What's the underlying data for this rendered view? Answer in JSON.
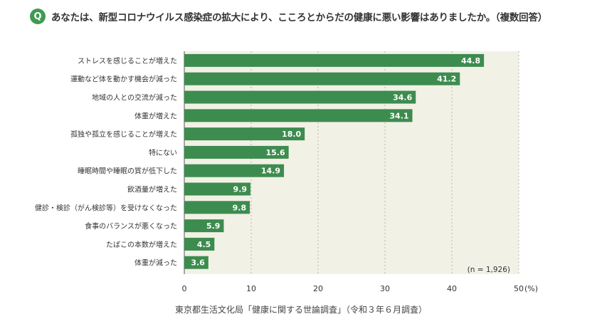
{
  "header": {
    "badge": "Q",
    "question": "あなたは、新型コロナウイルス感染症の拡大により、こころとからだの健康に悪い影響はありましたか。（複数回答）"
  },
  "colors": {
    "accent": "#3f9a52",
    "bar": "#3d8c4f",
    "plot_background": "#f2f1e6",
    "grid": "#b8b8a8"
  },
  "chart_data": {
    "type": "bar",
    "orientation": "horizontal",
    "categories": [
      "ストレスを感じることが増えた",
      "運動など体を動かす機会が減った",
      "地域の人との交流が減った",
      "体重が増えた",
      "孤独や孤立を感じることが増えた",
      "特にない",
      "睡眠時間や睡眠の質が低下した",
      "飲酒量が増えた",
      "健診・検診（がん検診等）を受けなくなった",
      "食事のバランスが悪くなった",
      "たばこの本数が増えた",
      "体重が減った"
    ],
    "values": [
      44.8,
      41.2,
      34.6,
      34.1,
      18.0,
      15.6,
      14.9,
      9.9,
      9.8,
      5.9,
      4.5,
      3.6
    ],
    "value_labels": [
      "44.8",
      "41.2",
      "34.6",
      "34.1",
      "18.0",
      "15.6",
      "14.9",
      "9.9",
      "9.8",
      "5.9",
      "4.5",
      "3.6"
    ],
    "xlim": [
      0,
      50
    ],
    "xticks": [
      0,
      10,
      20,
      30,
      40,
      50
    ],
    "xtick_labels": [
      "0",
      "10",
      "20",
      "30",
      "40",
      "50"
    ],
    "unit_label": "(%)",
    "annotation": "(n = 1,926)",
    "grid": true,
    "grid_style": "dashed vertical"
  },
  "footer": {
    "source": "東京都生活文化局「健康に関する世論調査」（令和３年６月調査）"
  }
}
